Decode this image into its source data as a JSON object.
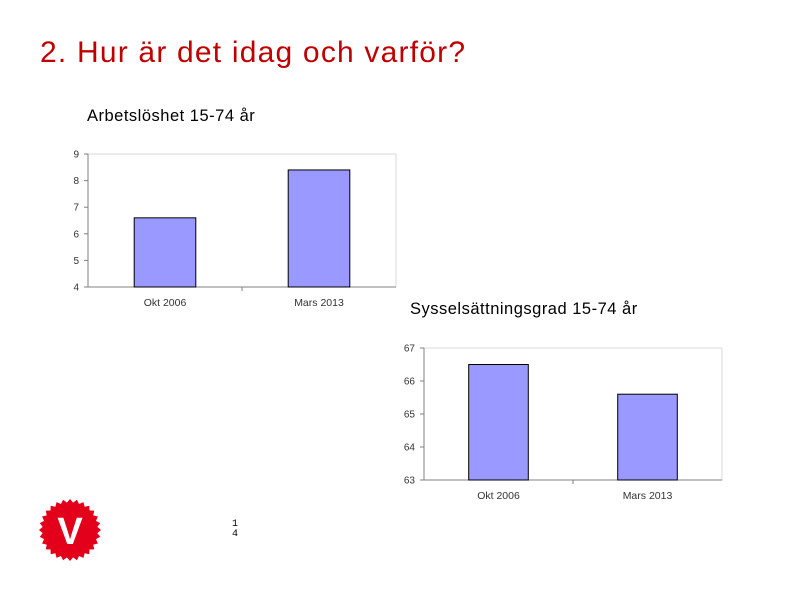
{
  "slide": {
    "title": "2. Hur är det idag och varför?",
    "page_number": "1\n4",
    "logo_letter": "V",
    "colors": {
      "title": "#c00000",
      "bar_fill": "#9999ff",
      "bar_stroke": "#000000",
      "axis": "#808080",
      "logo": "#e3001b"
    }
  },
  "chart_data": [
    {
      "type": "bar",
      "title": "Arbetslöshet 15-74 år",
      "categories": [
        "Okt 2006",
        "Mars 2013"
      ],
      "values": [
        6.6,
        8.4
      ],
      "ylim": [
        4,
        9
      ],
      "yticks": [
        4,
        5,
        6,
        7,
        8,
        9
      ],
      "xlabel": "",
      "ylabel": "",
      "grid": false,
      "legend": "none"
    },
    {
      "type": "bar",
      "title": "Sysselsättningsgrad 15-74 år",
      "categories": [
        "Okt 2006",
        "Mars 2013"
      ],
      "values": [
        66.5,
        65.6
      ],
      "ylim": [
        63,
        67
      ],
      "yticks": [
        63,
        64,
        65,
        66,
        67
      ],
      "xlabel": "",
      "ylabel": "",
      "grid": false,
      "legend": "none"
    }
  ]
}
